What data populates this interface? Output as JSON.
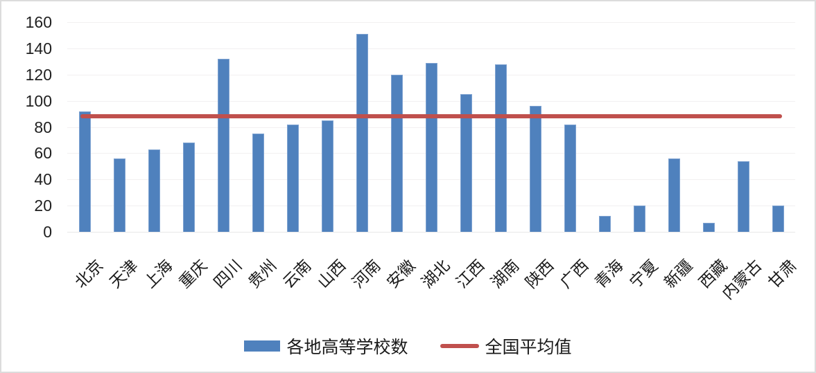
{
  "chart_data": {
    "type": "bar",
    "title": "",
    "categories": [
      "北京",
      "天津",
      "上海",
      "重庆",
      "四川",
      "贵州",
      "云南",
      "山西",
      "河南",
      "安徽",
      "湖北",
      "江西",
      "湖南",
      "陕西",
      "广西",
      "青海",
      "宁夏",
      "新疆",
      "西藏",
      "内蒙古",
      "甘肃"
    ],
    "series": [
      {
        "name": "各地高等学校数",
        "type": "bar",
        "color": "#4F81BD",
        "values": [
          92,
          56,
          63,
          68,
          132,
          75,
          82,
          85,
          151,
          120,
          129,
          105,
          128,
          96,
          82,
          12,
          20,
          56,
          7,
          54,
          20
        ]
      },
      {
        "name": "全国平均值",
        "type": "line",
        "color": "#C0504D",
        "value": 88
      }
    ],
    "xlabel": "",
    "ylabel": "",
    "ylim": [
      0,
      160
    ],
    "yticks": [
      0,
      20,
      40,
      60,
      80,
      100,
      120,
      140,
      160
    ],
    "grid": true,
    "legend_position": "bottom"
  },
  "legend": {
    "bar_label": "各地高等学校数",
    "line_label": "全国平均值"
  },
  "colors": {
    "bar_fill": "#4F81BD",
    "bar_border": "#7FA3D1",
    "line": "#C0504D",
    "gridline": "#F2F0F1",
    "baseline": "#E7E7E7",
    "axis_text": "#1F1F1F",
    "frame_border": "#DCDCDC",
    "background": "#FFFFFF"
  }
}
